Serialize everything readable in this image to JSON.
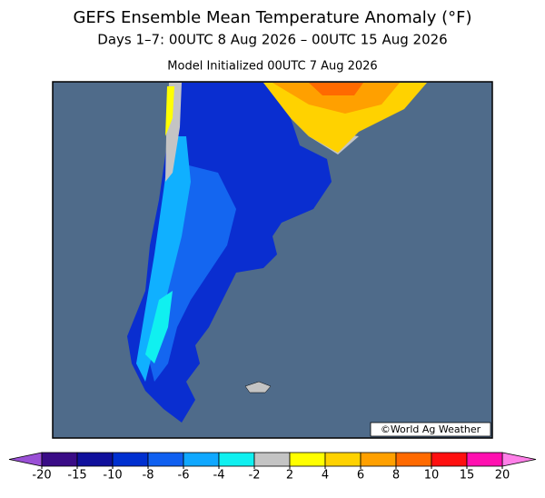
{
  "header": {
    "title": "GEFS Ensemble Mean Temperature Anomaly (°F)",
    "subtitle": "Days 1–7: 00UTC 8 Aug 2026 – 00UTC 15 Aug 2026",
    "initialized": "Model Initialized 00UTC 7 Aug 2026"
  },
  "map": {
    "credit": "©World Ag Weather"
  },
  "colorbar": {
    "ticks": [
      -20,
      -15,
      -10,
      -8,
      -6,
      -4,
      -2,
      2,
      4,
      6,
      8,
      10,
      15,
      20
    ],
    "colors": [
      "#3a0c86",
      "#10109c",
      "#0030d0",
      "#1060f0",
      "#10a8ff",
      "#10f0f0",
      "#c4c4c4",
      "#ffff00",
      "#ffd200",
      "#ffa000",
      "#ff6a00",
      "#ff1010",
      "#ff10b0"
    ],
    "under_color": "#9a50d6",
    "over_color": "#ff80e8"
  }
}
